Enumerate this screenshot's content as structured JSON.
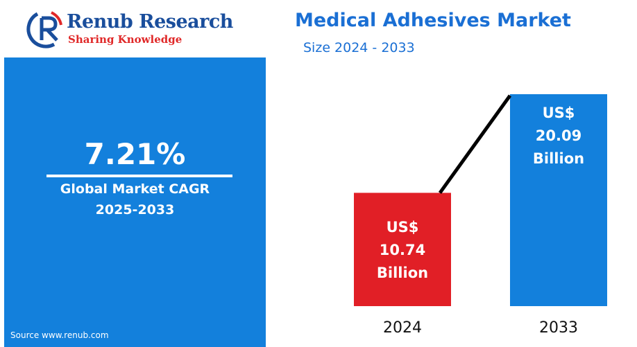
{
  "brand": {
    "name": "Renub Research",
    "tagline": "Sharing Knowledge",
    "colors": {
      "name": "#1a4e9c",
      "tagline": "#e02828"
    }
  },
  "header": {
    "title": "Medical Adhesives Market",
    "subtitle": "Size 2024 - 2033"
  },
  "cagr_panel": {
    "value": "7.21%",
    "label": "Global Market CAGR",
    "period": "2025-2033",
    "source": "Source  www.renub.com",
    "background": "#1380dc"
  },
  "chart_data": {
    "type": "bar",
    "categories": [
      "2024",
      "2033"
    ],
    "values": [
      10.74,
      20.09
    ],
    "unit": "US$ Billion",
    "data_labels": [
      [
        "US$",
        "10.74",
        "Billion"
      ],
      [
        "US$",
        "20.09",
        "Billion"
      ]
    ],
    "colors": [
      "#e11f26",
      "#1380dc"
    ],
    "connector": true,
    "connector_color": "#000000"
  }
}
